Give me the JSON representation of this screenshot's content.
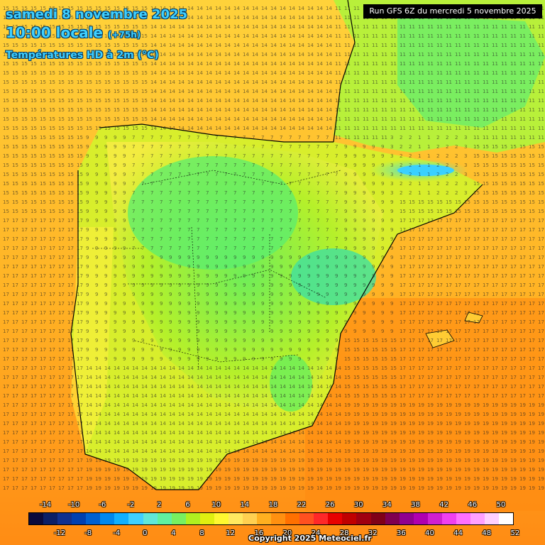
{
  "header": {
    "date": "samedi 8 novembre 2025",
    "time": "10:00 locale",
    "lead": "(+75h)",
    "variable": "Températures HD à 2m (°C)",
    "run": "Run GFS 6Z du mercredi 5 novembre 2025"
  },
  "footer": {
    "copyright": "Copyright 2025 Meteociel.fr"
  },
  "legend": {
    "colors": [
      "#0a0a3c",
      "#0b1f66",
      "#10308f",
      "#0040b0",
      "#0060d0",
      "#0088ee",
      "#10b0ff",
      "#40d0ff",
      "#60e8d8",
      "#60f0a0",
      "#78f060",
      "#b0f020",
      "#e0f010",
      "#fff830",
      "#ffe860",
      "#ffd050",
      "#ffb020",
      "#ff9010",
      "#ff7000",
      "#ff5020",
      "#ff2828",
      "#e80000",
      "#c00000",
      "#a00010",
      "#800018",
      "#800050",
      "#900090",
      "#b000b0",
      "#d020d0",
      "#f040f0",
      "#ff70ff",
      "#ffa0ff",
      "#ffd0ff",
      "#ffffff"
    ],
    "top_ticks": [
      "-14",
      "-10",
      "-6",
      "-2",
      "2",
      "6",
      "10",
      "14",
      "18",
      "22",
      "26",
      "30",
      "34",
      "38",
      "42",
      "46",
      "50"
    ],
    "bottom_ticks": [
      "-12",
      "-8",
      "-4",
      "0",
      "4",
      "8",
      "12",
      "16",
      "20",
      "24",
      "28",
      "32",
      "36",
      "40",
      "44",
      "48",
      "52"
    ]
  },
  "map": {
    "zones": [
      {
        "name": "atlantic-north",
        "temp": 15
      },
      {
        "name": "bay-of-biscay",
        "temp": 14
      },
      {
        "name": "southern-france",
        "temp": 11
      },
      {
        "name": "pyrenees",
        "temp": 1
      },
      {
        "name": "northern-meseta",
        "temp": 7
      },
      {
        "name": "central-spain",
        "temp": 9
      },
      {
        "name": "andalusia",
        "temp": 14
      },
      {
        "name": "portugal-coast",
        "temp": 17
      },
      {
        "name": "mediterranean-south",
        "temp": 19
      },
      {
        "name": "balearic-sea",
        "temp": 17
      }
    ]
  }
}
